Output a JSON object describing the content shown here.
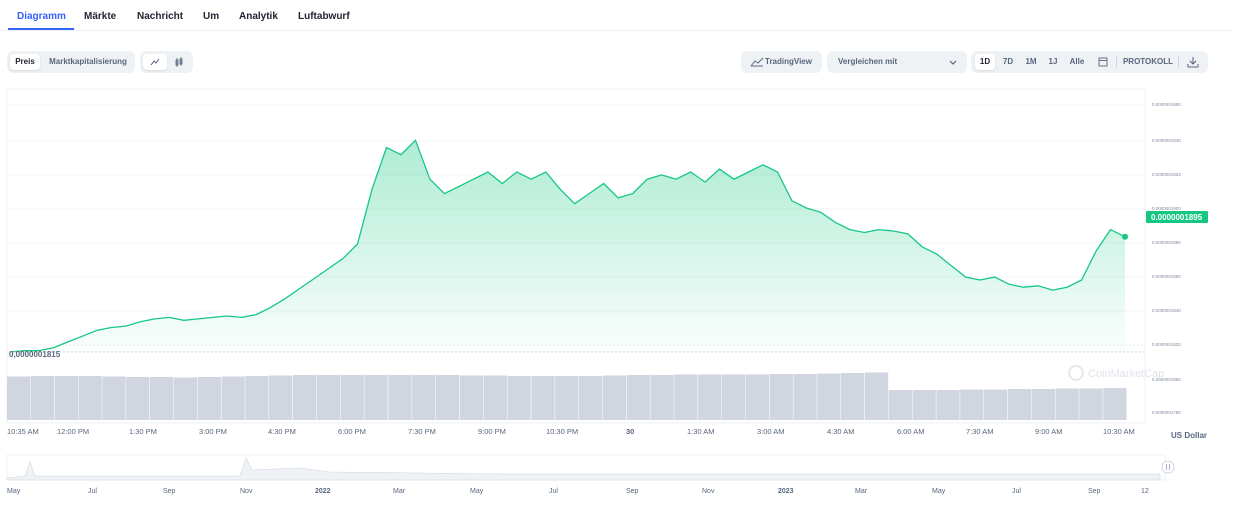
{
  "tabs": [
    "Diagramm",
    "Märkte",
    "Nachricht",
    "Um",
    "Analytik",
    "Luftabwurf"
  ],
  "toolbar": {
    "left_segment": [
      "Preis",
      "Marktkapitalisierung"
    ],
    "tradingview_label": "TradingView",
    "compare_label": "Vergleichen mit",
    "ranges": [
      "1D",
      "7D",
      "1M",
      "1J",
      "Alle"
    ],
    "log_label": "PROTOKOLL"
  },
  "icons": {
    "line": "line-chart-icon",
    "candle": "candlestick-icon",
    "tradingview": "tradingview-icon",
    "dropdown": "chevron-down-icon",
    "calendar": "calendar-icon",
    "download": "download-icon",
    "watermark": "coinmarketcap-logo-icon",
    "navigator_handle": "pause-handle-icon"
  },
  "colors": {
    "accent": "#3861fb",
    "line": "#16c784",
    "volume": "#d0d5e0"
  },
  "watermark_text": "CoinMarketCap",
  "chart_data": {
    "type": "area",
    "currency_label": "US Dollar",
    "current_price_label": "0.0000001895",
    "low_label": "0,0000001815",
    "x_ticks": [
      "10:35 AM",
      "12:00 PM",
      "1:30 PM",
      "3:00 PM",
      "4:30 PM",
      "6:00 PM",
      "7:30 PM",
      "9:00 PM",
      "10:30 PM",
      "30",
      "1:30 AM",
      "3:00 AM",
      "4:30 AM",
      "6:00 AM",
      "7:30 AM",
      "9:00 AM",
      "10:30 AM"
    ],
    "y_ticks": [
      1.98e-07,
      1.94e-07,
      1.93e-07,
      1.9e-07,
      1.88e-07,
      1.86e-07,
      1.84e-07,
      1.82e-07
    ],
    "y_tick_labels": [
      "0.0000001980",
      "0.0000001940",
      "0.0000001933",
      "0.0000001900",
      "0.0000001880",
      "0.0000001860",
      "0.0000001840",
      "0.0000001820"
    ],
    "volume_tick_labels": [
      "0.0000001860",
      "0.0000001780"
    ],
    "ylim": [
      1.815e-07,
      1.99e-07
    ],
    "series": [
      {
        "values": [
          1.815e-07,
          1.816e-07,
          1.816e-07,
          1.818e-07,
          1.822e-07,
          1.826e-07,
          1.83e-07,
          1.832e-07,
          1.833e-07,
          1.836e-07,
          1.838e-07,
          1.839e-07,
          1.837e-07,
          1.838e-07,
          1.839e-07,
          1.84e-07,
          1.839e-07,
          1.841e-07,
          1.846e-07,
          1.852e-07,
          1.859e-07,
          1.866e-07,
          1.873e-07,
          1.88e-07,
          1.89e-07,
          1.928e-07,
          1.957e-07,
          1.952e-07,
          1.962e-07,
          1.935e-07,
          1.925e-07,
          1.93e-07,
          1.935e-07,
          1.94e-07,
          1.932e-07,
          1.94e-07,
          1.935e-07,
          1.94e-07,
          1.928e-07,
          1.918e-07,
          1.925e-07,
          1.932e-07,
          1.922e-07,
          1.925e-07,
          1.935e-07,
          1.938e-07,
          1.935e-07,
          1.94e-07,
          1.933e-07,
          1.942e-07,
          1.935e-07,
          1.94e-07,
          1.945e-07,
          1.94e-07,
          1.92e-07,
          1.915e-07,
          1.912e-07,
          1.905e-07,
          1.9e-07,
          1.898e-07,
          1.9e-07,
          1.899e-07,
          1.897e-07,
          1.888e-07,
          1.883e-07,
          1.875e-07,
          1.867e-07,
          1.865e-07,
          1.867e-07,
          1.862e-07,
          1.86e-07,
          1.861e-07,
          1.858e-07,
          1.86e-07,
          1.865e-07,
          1.885e-07,
          1.9e-07,
          1.895e-07
        ]
      }
    ],
    "volume": [
      0.87,
      0.88,
      0.88,
      0.88,
      0.87,
      0.86,
      0.86,
      0.85,
      0.86,
      0.87,
      0.88,
      0.89,
      0.9,
      0.9,
      0.9,
      0.9,
      0.9,
      0.9,
      0.9,
      0.89,
      0.89,
      0.88,
      0.88,
      0.88,
      0.88,
      0.89,
      0.9,
      0.9,
      0.91,
      0.91,
      0.91,
      0.91,
      0.92,
      0.92,
      0.93,
      0.94,
      0.95,
      0.6,
      0.6,
      0.6,
      0.61,
      0.61,
      0.62,
      0.62,
      0.63,
      0.63,
      0.64
    ]
  }
}
